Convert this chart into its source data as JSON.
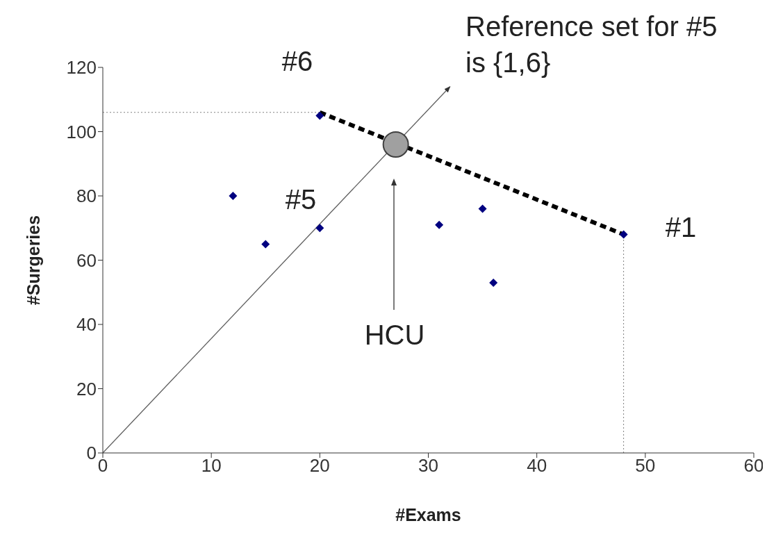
{
  "chart_data": {
    "type": "scatter",
    "xlabel": "#Exams",
    "ylabel": "#Surgeries",
    "xlim": [
      0,
      60
    ],
    "ylim": [
      0,
      120
    ],
    "xticks": [
      0,
      10,
      20,
      30,
      40,
      50,
      60
    ],
    "yticks": [
      0,
      20,
      40,
      60,
      80,
      100,
      120
    ],
    "grid": false,
    "series": [
      {
        "color": "#000080",
        "marker": "diamond",
        "x": [
          20,
          12,
          15,
          20,
          31,
          35,
          36,
          48
        ],
        "values": [
          105,
          80,
          65,
          70,
          71,
          76,
          53,
          68
        ]
      },
      {
        "type": "line",
        "color": "#000000",
        "line_style": "dashed",
        "x": [
          20,
          48
        ],
        "values": [
          106,
          68
        ]
      },
      {
        "type": "line",
        "color": "#808080",
        "line_style": "dotted",
        "x": [
          0,
          20
        ],
        "values": [
          106,
          106
        ]
      },
      {
        "type": "line",
        "color": "#808080",
        "line_style": "dotted",
        "x": [
          48,
          48
        ],
        "values": [
          0,
          68
        ]
      },
      {
        "type": "line",
        "color": "#606060",
        "line_style": "solid",
        "x": [
          0,
          32
        ],
        "values": [
          0,
          114
        ]
      },
      {
        "color": "#a0a0a0",
        "marker": "circle",
        "x": [
          27
        ],
        "values": [
          96
        ]
      }
    ],
    "annotations": [
      "#6",
      "#5",
      "#1",
      "HCU",
      "Reference set for #5 is  {1,6}"
    ]
  }
}
